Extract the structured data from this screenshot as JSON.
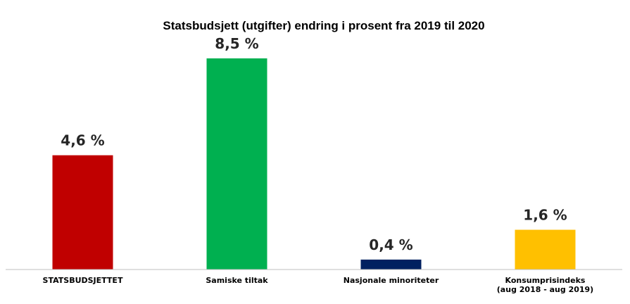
{
  "chart_data": {
    "type": "bar",
    "title": "Statsbudsjett (utgifter) endring i prosent fra 2019 til 2020",
    "categories": [
      [
        "STATSBUDSJETTET"
      ],
      [
        "Samiske tiltak"
      ],
      [
        "Nasjonale minoriteter"
      ],
      [
        "Konsumprisindeks",
        "(aug 2018 - aug 2019)"
      ]
    ],
    "values": [
      4.6,
      8.5,
      0.4,
      1.6
    ],
    "data_labels": [
      "4,6 %",
      "8,5 %",
      "0,4 %",
      "1,6 %"
    ],
    "colors": [
      "#c00000",
      "#00b050",
      "#002060",
      "#ffc000"
    ],
    "ylim": [
      0,
      10
    ],
    "grid": false,
    "legend": "none"
  }
}
